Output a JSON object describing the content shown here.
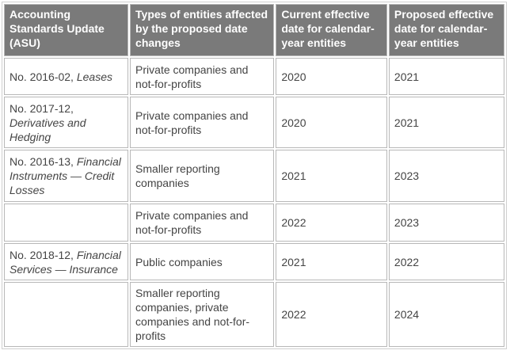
{
  "table": {
    "headers": [
      "Accounting Standards Update (ASU)",
      "Types of entities affected by the proposed date changes",
      "Current effective date for calendar-year entities",
      "Proposed effective date for calendar-year entities"
    ],
    "rows": [
      {
        "asu_num": "No. 2016-02, ",
        "asu_name": "Leases",
        "entities": "Private companies and not-for-profits",
        "current": "2020",
        "proposed": "2021"
      },
      {
        "asu_num": "No. 2017-12, ",
        "asu_name": "Derivatives and Hedging",
        "entities": "Private companies and not-for-profits",
        "current": "2020",
        "proposed": "2021"
      },
      {
        "asu_num": "No. 2016-13, ",
        "asu_name": "Financial Instruments — Credit Losses",
        "entities": "Smaller reporting companies",
        "current": "2021",
        "proposed": "2023"
      },
      {
        "asu_num": "",
        "asu_name": "",
        "entities": "Private companies and not-for-profits",
        "current": "2022",
        "proposed": "2023"
      },
      {
        "asu_num": "No. 2018-12, ",
        "asu_name": "Financial Services — Insurance",
        "entities": "Public companies",
        "current": "2021",
        "proposed": "2022"
      },
      {
        "asu_num": "",
        "asu_name": "",
        "entities": "Smaller reporting companies, private companies and not-for-profits",
        "current": "2022",
        "proposed": "2024"
      }
    ]
  }
}
